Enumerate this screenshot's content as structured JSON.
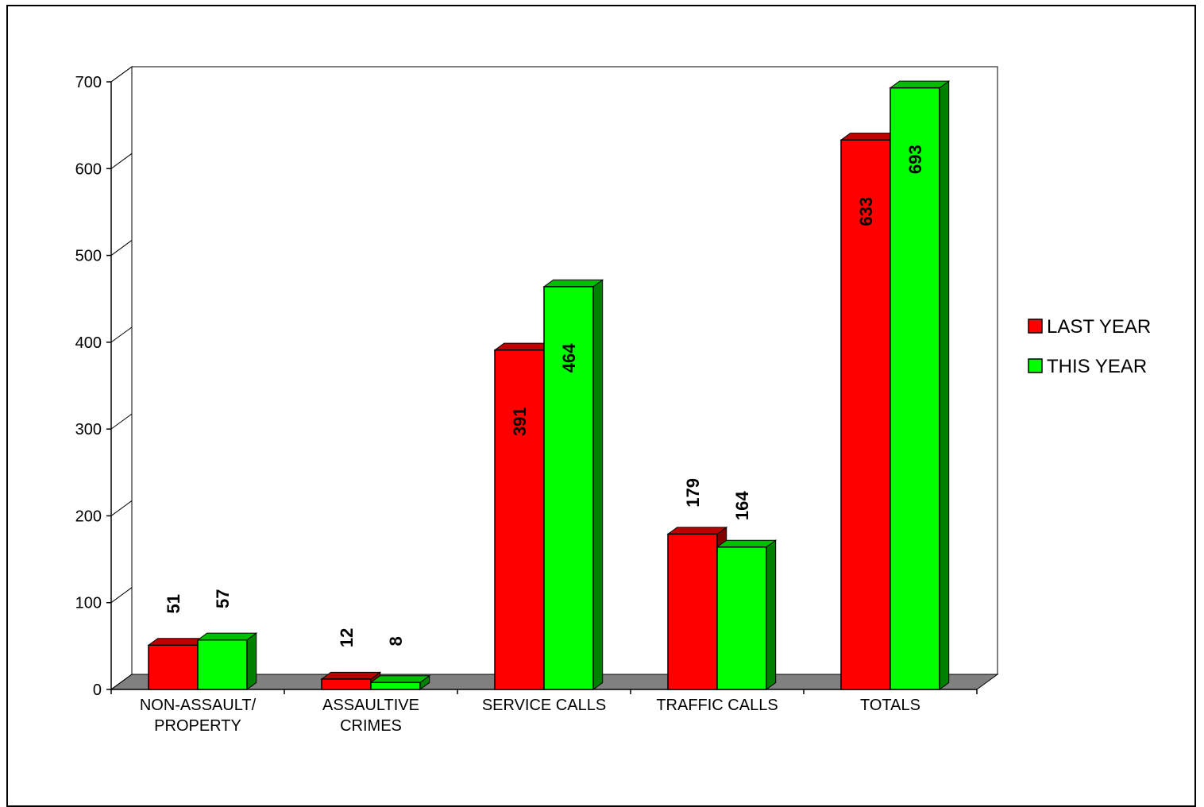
{
  "chart_data": {
    "type": "bar",
    "title": "",
    "xlabel": "",
    "ylabel": "",
    "ylim": [
      0,
      700
    ],
    "yticks": [
      0,
      100,
      200,
      300,
      400,
      500,
      600,
      700
    ],
    "categories": [
      [
        "NON-ASSAULT/",
        "PROPERTY"
      ],
      [
        "ASSAULTIVE",
        "CRIMES"
      ],
      [
        "SERVICE CALLS"
      ],
      [
        "TRAFFIC CALLS"
      ],
      [
        "TOTALS"
      ]
    ],
    "series": [
      {
        "name": "LAST YEAR",
        "color": "#ff0000",
        "values": [
          51,
          12,
          391,
          179,
          633
        ]
      },
      {
        "name": "THIS YEAR",
        "color": "#00ff00",
        "values": [
          57,
          8,
          464,
          164,
          693
        ]
      }
    ],
    "grid": false,
    "legend_position": "right",
    "style": "3d-bars"
  }
}
